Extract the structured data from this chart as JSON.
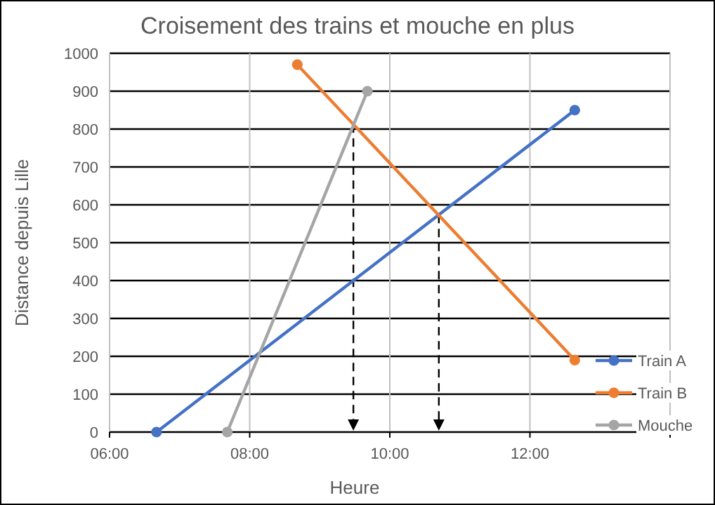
{
  "chart_data": {
    "type": "line",
    "title": "Croisement des trains et mouche en plus",
    "xlabel": "Heure",
    "ylabel": "Distance depuis Lille",
    "xlim": [
      6,
      14
    ],
    "xticks": [
      {
        "value": 6,
        "label": "06:00"
      },
      {
        "value": 8,
        "label": "08:00"
      },
      {
        "value": 10,
        "label": "10:00"
      },
      {
        "value": 12,
        "label": "12:00"
      },
      {
        "value": 14,
        "label": null
      }
    ],
    "ylim": [
      0,
      1000
    ],
    "yticks": [
      0,
      100,
      200,
      300,
      400,
      500,
      600,
      700,
      800,
      900,
      1000
    ],
    "grid": true,
    "legend": "right",
    "marker": "circle",
    "series": [
      {
        "name": "Train A",
        "color": "#4472c4",
        "x": [
          6.67,
          12.64
        ],
        "values": [
          0,
          850
        ]
      },
      {
        "name": "Train B",
        "color": "#ed7d31",
        "x": [
          8.68,
          12.64
        ],
        "values": [
          970,
          190
        ]
      },
      {
        "name": "Mouche",
        "color": "#a5a5a5",
        "x": [
          7.68,
          9.68
        ],
        "values": [
          0,
          900
        ]
      }
    ],
    "ref_lines": [
      {
        "axis": "x",
        "value": 9.48,
        "line_style": "dashed",
        "color": "#000000"
      },
      {
        "axis": "x",
        "value": 10.7,
        "line_style": "dashed",
        "color": "#000000"
      }
    ]
  }
}
